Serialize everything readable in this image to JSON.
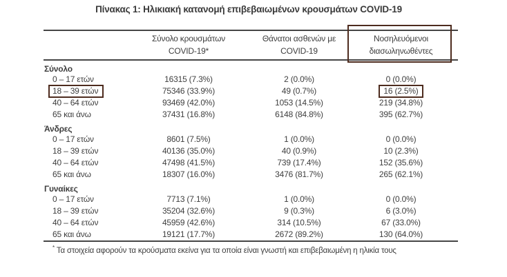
{
  "page": {
    "title": "Πίνακας 1: Ηλικιακή κατανομή επιβεβαιωμένων κρουσμάτων COVID-19",
    "footnote_marker": "*",
    "footnote": "Τα στοιχεία αφορούν τα κρούσματα εκείνα για τα οποία είναι γνωστή και επιβεβαιωμένη η ηλικία τους"
  },
  "colors": {
    "highlight_box": "#4d2b1e",
    "rule_line": "#454545",
    "text": "#3e3e3e"
  },
  "table": {
    "headers": [
      {
        "line1": "Σύνολο κρουσμάτων",
        "line2": "COVID-19*"
      },
      {
        "line1": "Θάνατοι ασθενών με",
        "line2": "COVID-19"
      },
      {
        "line1": "Νοσηλευόμενοι",
        "line2": "διασωληνωθέντες",
        "highlighted": true
      }
    ],
    "sections": [
      {
        "name": "Σύνολο",
        "rows": [
          {
            "label": "0 – 17 ετών",
            "cases": "16315 (7.3%)",
            "deaths": "2 (0.0%)",
            "intubated": "0 (0.0%)"
          },
          {
            "label": "18 – 39 ετών",
            "cases": "75346 (33.9%)",
            "deaths": "49 (0.7%)",
            "intubated": "16 (2.5%)",
            "label_highlighted": true,
            "intubated_highlighted": true
          },
          {
            "label": "40 – 64 ετών",
            "cases": "93469 (42.0%)",
            "deaths": "1053 (14.5%)",
            "intubated": "219 (34.8%)"
          },
          {
            "label": "65 και άνω",
            "cases": "37431 (16.8%)",
            "deaths": "6148 (84.8%)",
            "intubated": "395 (62.7%)"
          }
        ]
      },
      {
        "name": "Άνδρες",
        "rows": [
          {
            "label": "0 – 17 ετών",
            "cases": "8601 (7.5%)",
            "deaths": "1 (0.0%)",
            "intubated": "0 (0.0%)"
          },
          {
            "label": "18 – 39 ετών",
            "cases": "40136 (35.0%)",
            "deaths": "40 (0.9%)",
            "intubated": "10 (2.3%)"
          },
          {
            "label": "40 – 64 ετών",
            "cases": "47498 (41.5%)",
            "deaths": "739 (17.4%)",
            "intubated": "152 (35.6%)"
          },
          {
            "label": "65 και άνω",
            "cases": "18307 (16.0%)",
            "deaths": "3476 (81.7%)",
            "intubated": "265 (62.1%)"
          }
        ]
      },
      {
        "name": "Γυναίκες",
        "rows": [
          {
            "label": "0 – 17 ετών",
            "cases": "7713 (7.1%)",
            "deaths": "1 (0.0%)",
            "intubated": "0 (0.0%)"
          },
          {
            "label": "18 – 39 ετών",
            "cases": "35204 (32.6%)",
            "deaths": "9 (0.3%)",
            "intubated": "6 (3.0%)"
          },
          {
            "label": "40 – 64 ετών",
            "cases": "45959 (42.6%)",
            "deaths": "314 (10.5%)",
            "intubated": "67 (33.0%)"
          },
          {
            "label": "65 και άνω",
            "cases": "19121 (17.7%)",
            "deaths": "2672 (89.2%)",
            "intubated": "130 (64.0%)"
          }
        ]
      }
    ]
  }
}
